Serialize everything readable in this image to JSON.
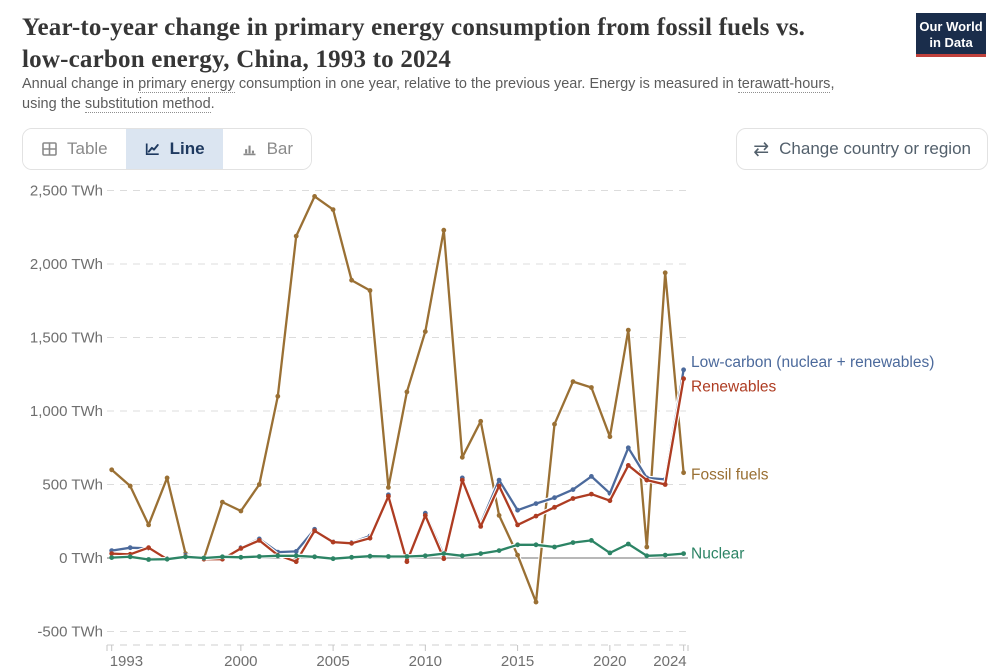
{
  "header": {
    "title_line1": "Year-to-year change in primary energy consumption from fossil fuels vs.",
    "title_line2": "low-carbon energy, China, 1993 to 2024",
    "subtitle": {
      "t1": "Annual change in ",
      "u1": "primary energy",
      "t2": " consumption in one year, relative to the previous year. Energy is measured in ",
      "u2": "terawatt-hours",
      "t3": ",",
      "t4": "using the ",
      "u3": "substitution method",
      "t5": "."
    },
    "logo": {
      "line1": "Our World",
      "line2": "in Data"
    }
  },
  "controls": {
    "tabs": [
      {
        "label": "Table",
        "active": false
      },
      {
        "label": "Line",
        "active": true
      },
      {
        "label": "Bar",
        "active": false
      }
    ],
    "change_button": "Change country or region"
  },
  "chart_data": {
    "type": "line",
    "title": "Year-to-year change in primary energy consumption from fossil fuels vs. low-carbon energy, China, 1993 to 2024",
    "unit": "TWh",
    "xlim": [
      1993,
      2024
    ],
    "ylim": [
      -500,
      2500
    ],
    "grid": "dashed horizontal",
    "legend_position": "right-end-labels",
    "x": [
      1993,
      1994,
      1995,
      1996,
      1997,
      1998,
      1999,
      2000,
      2001,
      2002,
      2003,
      2004,
      2005,
      2006,
      2007,
      2008,
      2009,
      2010,
      2011,
      2012,
      2013,
      2014,
      2015,
      2016,
      2017,
      2018,
      2019,
      2020,
      2021,
      2022,
      2023,
      2024
    ],
    "series": [
      {
        "name": "Fossil fuels",
        "color": "#9a7034",
        "label_dy": 2,
        "values": [
          600,
          490,
          225,
          545,
          30,
          -5,
          380,
          320,
          500,
          1100,
          2190,
          2460,
          2370,
          1890,
          1820,
          480,
          1130,
          1540,
          2230,
          685,
          930,
          290,
          20,
          -300,
          910,
          1200,
          1160,
          825,
          1550,
          75,
          1940,
          580
        ]
      },
      {
        "name": "Low-carbon (nuclear + renewables)",
        "color": "#4c6a9c",
        "label_dy": -8,
        "values": [
          50,
          70,
          65,
          -5,
          20,
          -5,
          0,
          70,
          130,
          40,
          45,
          195,
          110,
          105,
          150,
          430,
          -15,
          305,
          20,
          545,
          235,
          530,
          325,
          370,
          410,
          465,
          555,
          440,
          750,
          545,
          535,
          1280
        ]
      },
      {
        "name": "Renewables",
        "color": "#ae3c22",
        "label_dy": 8,
        "values": [
          30,
          25,
          70,
          -8,
          12,
          -8,
          -8,
          65,
          120,
          20,
          -25,
          185,
          108,
          100,
          135,
          420,
          -25,
          290,
          -5,
          530,
          215,
          490,
          225,
          285,
          345,
          405,
          435,
          390,
          630,
          530,
          500,
          1220
        ]
      },
      {
        "name": "Nuclear",
        "color": "#2c8465",
        "label_dy": 0,
        "values": [
          3,
          8,
          -10,
          -8,
          8,
          0,
          8,
          5,
          10,
          15,
          15,
          8,
          -5,
          5,
          12,
          10,
          10,
          15,
          30,
          15,
          30,
          50,
          90,
          90,
          75,
          105,
          120,
          35,
          95,
          15,
          20,
          30
        ]
      }
    ],
    "y_ticks": [
      {
        "value": 2500,
        "label": "2,500 TWh"
      },
      {
        "value": 2000,
        "label": "2,000 TWh"
      },
      {
        "value": 1500,
        "label": "1,500 TWh"
      },
      {
        "value": 1000,
        "label": "1,000 TWh"
      },
      {
        "value": 500,
        "label": "500 TWh"
      },
      {
        "value": 0,
        "label": "0 TWh"
      },
      {
        "value": -500,
        "label": "-500 TWh"
      }
    ],
    "x_ticks": [
      {
        "value": 1993,
        "label": "1993",
        "anchor": "start"
      },
      {
        "value": 2000,
        "label": "2000",
        "anchor": "middle"
      },
      {
        "value": 2005,
        "label": "2005",
        "anchor": "middle"
      },
      {
        "value": 2010,
        "label": "2010",
        "anchor": "middle"
      },
      {
        "value": 2015,
        "label": "2015",
        "anchor": "middle"
      },
      {
        "value": 2020,
        "label": "2020",
        "anchor": "middle"
      },
      {
        "value": 2024,
        "label": "2024",
        "anchor": "end"
      }
    ]
  }
}
